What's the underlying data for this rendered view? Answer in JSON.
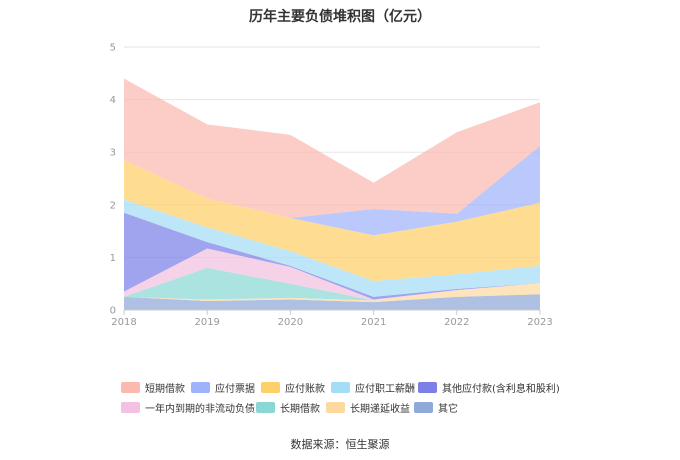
{
  "title": "历年主要负债堆积图（亿元）",
  "source": "数据来源：恒生聚源",
  "chart_data": {
    "type": "area",
    "stacked": true,
    "categories": [
      "2018",
      "2019",
      "2020",
      "2021",
      "2022",
      "2023"
    ],
    "ylim": [
      0,
      5
    ],
    "yticks": [
      "0",
      "1",
      "2",
      "3",
      "4",
      "5"
    ],
    "grid": true,
    "legend_position": "bottom",
    "series": [
      {
        "name": "其它",
        "color": "#8fa9d8",
        "values": [
          0.25,
          0.17,
          0.2,
          0.15,
          0.25,
          0.3
        ]
      },
      {
        "name": "长期递延收益",
        "color": "#fdd9a0",
        "values": [
          0.0,
          0.03,
          0.03,
          0.03,
          0.12,
          0.21
        ]
      },
      {
        "name": "长期借款",
        "color": "#8ad8d6",
        "values": [
          0.0,
          0.6,
          0.27,
          0.0,
          0.0,
          0.0
        ]
      },
      {
        "name": "一年内到期的非流动负债",
        "color": "#f3c1e1",
        "values": [
          0.1,
          0.37,
          0.32,
          0.02,
          0.01,
          0.0
        ]
      },
      {
        "name": "其他应付款(含利息和股利)",
        "color": "#7b7fe6",
        "values": [
          1.5,
          0.12,
          0.02,
          0.05,
          0.02,
          0.0
        ]
      },
      {
        "name": "应付职工薪酬",
        "color": "#a5dcf6",
        "values": [
          0.25,
          0.28,
          0.28,
          0.3,
          0.28,
          0.33
        ]
      },
      {
        "name": "应付账款",
        "color": "#fdd06a",
        "values": [
          0.75,
          0.55,
          0.63,
          0.87,
          1.0,
          1.2
        ]
      },
      {
        "name": "应付票据",
        "color": "#9fb3fa",
        "values": [
          0.0,
          0.0,
          0.0,
          0.5,
          0.15,
          1.08
        ]
      },
      {
        "name": "短期借款",
        "color": "#fbb9b0",
        "values": [
          1.55,
          1.41,
          1.58,
          0.5,
          1.55,
          0.83
        ]
      }
    ],
    "legend_order": [
      "短期借款",
      "应付票据",
      "应付账款",
      "应付职工薪酬",
      "其他应付款(含利息和股利)",
      "一年内到期的非流动负债",
      "长期借款",
      "长期递延收益",
      "其它"
    ]
  }
}
